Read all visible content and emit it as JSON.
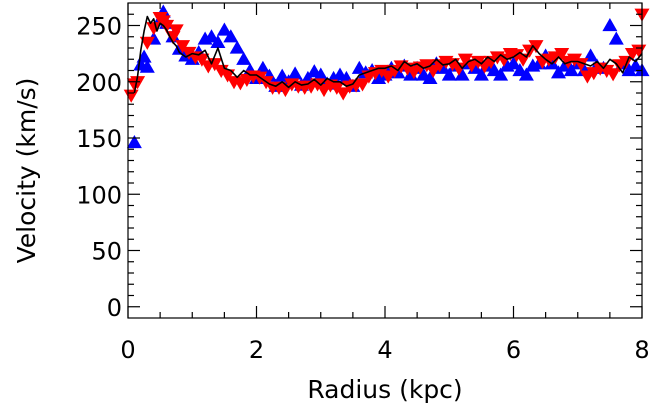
{
  "chart_data": {
    "type": "scatter",
    "title": "",
    "xlabel": "Radius (kpc)",
    "ylabel": "Velocity (km/s)",
    "xlim": [
      0,
      8
    ],
    "ylim": [
      -10,
      270
    ],
    "x_ticks": [
      0,
      2,
      4,
      6,
      8
    ],
    "x_tick_labels": [
      "0",
      "2",
      "4",
      "6",
      "8"
    ],
    "y_ticks": [
      0,
      50,
      100,
      150,
      200,
      250
    ],
    "y_tick_labels": [
      "0",
      "50",
      "100",
      "150",
      "200",
      "250"
    ],
    "grid": false,
    "legend": "none",
    "series": [
      {
        "marker": "triangle-up",
        "color": "#0000ff",
        "x": [
          0.1,
          0.2,
          0.25,
          0.3,
          0.4,
          0.5,
          0.55,
          0.6,
          0.7,
          0.8,
          0.9,
          1.0,
          1.1,
          1.2,
          1.3,
          1.4,
          1.5,
          1.6,
          1.7,
          1.8,
          1.9,
          2.0,
          2.1,
          2.2,
          2.3,
          2.4,
          2.5,
          2.6,
          2.7,
          2.8,
          2.9,
          3.0,
          3.1,
          3.2,
          3.3,
          3.4,
          3.5,
          3.6,
          3.7,
          3.8,
          3.9,
          4.0,
          4.1,
          4.2,
          4.3,
          4.4,
          4.5,
          4.6,
          4.7,
          4.8,
          4.9,
          5.0,
          5.1,
          5.2,
          5.3,
          5.4,
          5.5,
          5.6,
          5.7,
          5.8,
          5.9,
          6.0,
          6.1,
          6.2,
          6.3,
          6.4,
          6.5,
          6.6,
          6.7,
          6.8,
          6.9,
          7.0,
          7.1,
          7.2,
          7.3,
          7.4,
          7.5,
          7.6,
          7.7,
          7.8,
          7.9,
          8.0
        ],
        "y": [
          146,
          215,
          222,
          213,
          238,
          255,
          262,
          252,
          240,
          229,
          223,
          220,
          226,
          238,
          240,
          235,
          246,
          240,
          230,
          220,
          210,
          203,
          212,
          205,
          196,
          205,
          200,
          207,
          197,
          203,
          209,
          206,
          198,
          203,
          206,
          203,
          196,
          212,
          208,
          210,
          203,
          206,
          212,
          208,
          214,
          206,
          212,
          206,
          203,
          216,
          212,
          206,
          214,
          206,
          216,
          212,
          206,
          214,
          210,
          206,
          214,
          216,
          210,
          206,
          214,
          216,
          223,
          216,
          208,
          214,
          210,
          216,
          210,
          223,
          214,
          212,
          250,
          238,
          216,
          210,
          214,
          210
        ]
      },
      {
        "marker": "triangle-down",
        "color": "#ff0000",
        "x": [
          0.05,
          0.1,
          0.15,
          0.3,
          0.4,
          0.5,
          0.55,
          0.6,
          0.7,
          0.75,
          0.85,
          0.95,
          1.05,
          1.15,
          1.25,
          1.35,
          1.45,
          1.55,
          1.65,
          1.75,
          1.85,
          1.95,
          2.05,
          2.15,
          2.25,
          2.35,
          2.45,
          2.55,
          2.65,
          2.75,
          2.85,
          2.95,
          3.05,
          3.15,
          3.25,
          3.35,
          3.45,
          3.55,
          3.65,
          3.75,
          3.85,
          3.95,
          4.05,
          4.15,
          4.25,
          4.35,
          4.45,
          4.55,
          4.65,
          4.75,
          4.85,
          4.95,
          5.05,
          5.15,
          5.25,
          5.35,
          5.45,
          5.55,
          5.65,
          5.75,
          5.85,
          5.95,
          6.05,
          6.15,
          6.25,
          6.35,
          6.45,
          6.55,
          6.65,
          6.75,
          6.85,
          6.95,
          7.05,
          7.15,
          7.25,
          7.35,
          7.45,
          7.55,
          7.65,
          7.75,
          7.85,
          7.95,
          8.0
        ],
        "y": [
          188,
          198,
          200,
          235,
          248,
          257,
          254,
          250,
          240,
          246,
          232,
          226,
          222,
          220,
          214,
          216,
          210,
          206,
          200,
          199,
          202,
          205,
          204,
          200,
          195,
          195,
          193,
          198,
          196,
          195,
          196,
          198,
          193,
          197,
          195,
          190,
          196,
          197,
          198,
          205,
          208,
          210,
          205,
          210,
          214,
          212,
          209,
          213,
          215,
          210,
          215,
          218,
          216,
          212,
          220,
          215,
          218,
          214,
          218,
          222,
          220,
          225,
          224,
          220,
          228,
          232,
          218,
          220,
          222,
          225,
          218,
          220,
          216,
          205,
          208,
          212,
          210,
          207,
          215,
          218,
          225,
          228,
          260
        ]
      },
      {
        "marker": "line",
        "color": "#000000",
        "x": [
          0.1,
          0.15,
          0.2,
          0.25,
          0.3,
          0.35,
          0.4,
          0.45,
          0.5,
          0.55,
          0.6,
          0.65,
          0.7,
          0.75,
          0.8,
          0.9,
          1.0,
          1.1,
          1.2,
          1.3,
          1.4,
          1.5,
          1.6,
          1.7,
          1.8,
          1.9,
          2.0,
          2.1,
          2.2,
          2.3,
          2.4,
          2.5,
          2.6,
          2.7,
          2.8,
          2.9,
          3.0,
          3.1,
          3.2,
          3.3,
          3.4,
          3.5,
          3.6,
          3.7,
          3.8,
          3.9,
          4.0,
          4.1,
          4.2,
          4.3,
          4.4,
          4.5,
          4.6,
          4.7,
          4.8,
          4.9,
          5.0,
          5.1,
          5.2,
          5.3,
          5.4,
          5.5,
          5.6,
          5.7,
          5.8,
          5.9,
          6.0,
          6.1,
          6.2,
          6.3,
          6.4,
          6.5,
          6.6,
          6.7,
          6.8,
          6.9,
          7.0,
          7.1,
          7.2,
          7.3,
          7.4,
          7.5,
          7.6,
          7.7,
          7.8,
          7.9,
          8.0
        ],
        "y": [
          190,
          205,
          228,
          245,
          258,
          252,
          256,
          245,
          252,
          250,
          246,
          240,
          235,
          232,
          226,
          222,
          225,
          224,
          228,
          216,
          230,
          212,
          210,
          204,
          210,
          206,
          206,
          202,
          198,
          196,
          200,
          195,
          200,
          197,
          198,
          202,
          197,
          203,
          200,
          200,
          196,
          198,
          206,
          208,
          210,
          212,
          212,
          214,
          210,
          218,
          214,
          216,
          212,
          214,
          220,
          215,
          216,
          220,
          212,
          218,
          220,
          216,
          222,
          218,
          224,
          220,
          222,
          226,
          222,
          232,
          225,
          220,
          216,
          222,
          216,
          218,
          218,
          216,
          214,
          218,
          212,
          220,
          216,
          208,
          222,
          218,
          225
        ]
      }
    ]
  }
}
